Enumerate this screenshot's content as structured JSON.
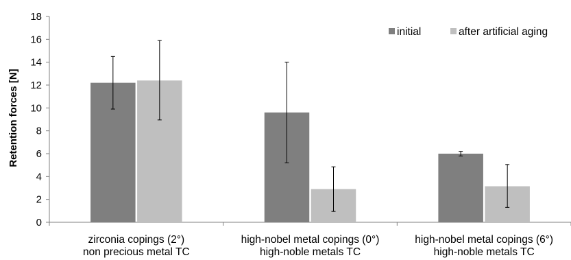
{
  "chart_data": {
    "type": "bar",
    "categories": [
      [
        "zirconia copings (2°)",
        "non precious metal TC"
      ],
      [
        "high-nobel metal copings (0°)",
        "high-noble metals TC"
      ],
      [
        "high-nobel metal copings (6°)",
        "high-noble metals TC"
      ]
    ],
    "series": [
      {
        "name": "initial",
        "color": "#7f7f7f",
        "values": [
          12.2,
          9.6,
          6.0
        ],
        "error_low": [
          9.9,
          5.2,
          5.8
        ],
        "error_high": [
          14.5,
          14.0,
          6.2
        ]
      },
      {
        "name": "after artificial aging",
        "color": "#bfbfbf",
        "values": [
          12.4,
          2.9,
          3.15
        ],
        "error_low": [
          8.95,
          0.95,
          1.3
        ],
        "error_high": [
          15.9,
          4.85,
          5.05
        ]
      }
    ],
    "ylabel": "Retention forces [N]",
    "xlabel": "",
    "ylim": [
      0,
      18
    ],
    "yticks": [
      0,
      2,
      4,
      6,
      8,
      10,
      12,
      14,
      16,
      18
    ],
    "grid": false,
    "legend_position": "top-right"
  }
}
